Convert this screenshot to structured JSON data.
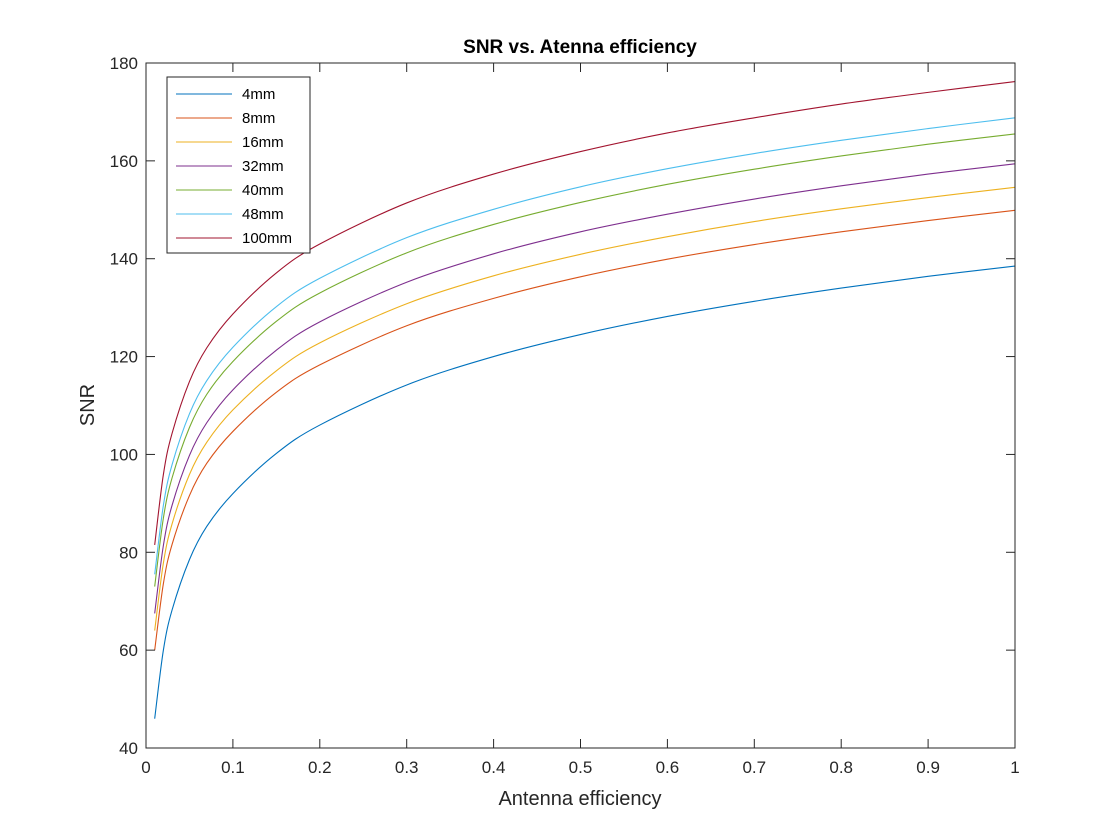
{
  "chart_data": {
    "type": "line",
    "title": "SNR vs. Atenna efficiency",
    "xlabel": "Antenna efficiency",
    "ylabel": "SNR",
    "xlim": [
      0,
      1
    ],
    "ylim": [
      40,
      180
    ],
    "xticks": [
      "0",
      "0.1",
      "0.2",
      "0.3",
      "0.4",
      "0.5",
      "0.6",
      "0.7",
      "0.8",
      "0.9",
      "1"
    ],
    "yticks": [
      "40",
      "60",
      "80",
      "100",
      "120",
      "140",
      "160",
      "180"
    ],
    "grid": false,
    "legend_position": "top-left",
    "x": [
      0.01,
      0.02,
      0.03,
      0.05,
      0.07,
      0.1,
      0.15,
      0.2,
      0.3,
      0.4,
      0.5,
      0.6,
      0.7,
      0.8,
      0.9,
      1.0
    ],
    "series": [
      {
        "name": "4mm",
        "color": "#0072BD",
        "values": [
          46.0,
          60.0,
          68.2,
          78.5,
          85.3,
          92.0,
          100.2,
          106.0,
          114.2,
          120.0,
          124.5,
          128.2,
          131.3,
          134.0,
          136.4,
          138.5
        ]
      },
      {
        "name": "8mm",
        "color": "#D95319",
        "values": [
          60.0,
          73.6,
          81.6,
          91.6,
          98.2,
          104.7,
          112.7,
          118.3,
          126.3,
          131.9,
          136.3,
          139.9,
          142.9,
          145.5,
          147.8,
          149.9
        ]
      },
      {
        "name": "16mm",
        "color": "#EDB120",
        "values": [
          64.0,
          77.8,
          85.8,
          95.9,
          102.5,
          109.1,
          117.1,
          122.8,
          130.8,
          136.5,
          140.9,
          144.5,
          147.6,
          150.2,
          152.5,
          154.6
        ]
      },
      {
        "name": "32mm",
        "color": "#7E2F8E",
        "values": [
          67.5,
          81.4,
          89.6,
          99.8,
          106.5,
          113.2,
          121.3,
          127.1,
          135.2,
          141.0,
          145.5,
          149.1,
          152.2,
          154.9,
          157.3,
          159.4
        ]
      },
      {
        "name": "40mm",
        "color": "#77AC30",
        "values": [
          73.0,
          87.0,
          95.2,
          105.5,
          112.3,
          119.0,
          127.2,
          133.0,
          141.2,
          147.0,
          151.5,
          155.2,
          158.3,
          161.0,
          163.4,
          165.5
        ]
      },
      {
        "name": "48mm",
        "color": "#4DBEEE",
        "values": [
          75.5,
          89.6,
          97.9,
          108.3,
          115.1,
          121.9,
          130.2,
          136.0,
          144.3,
          150.1,
          154.7,
          158.4,
          161.5,
          164.2,
          166.6,
          168.8
        ]
      },
      {
        "name": "100mm",
        "color": "#A2142F",
        "values": [
          81.5,
          95.9,
          104.3,
          114.9,
          121.8,
          128.7,
          137.1,
          143.0,
          151.4,
          157.3,
          161.9,
          165.7,
          168.8,
          171.6,
          174.0,
          176.2
        ]
      }
    ]
  }
}
